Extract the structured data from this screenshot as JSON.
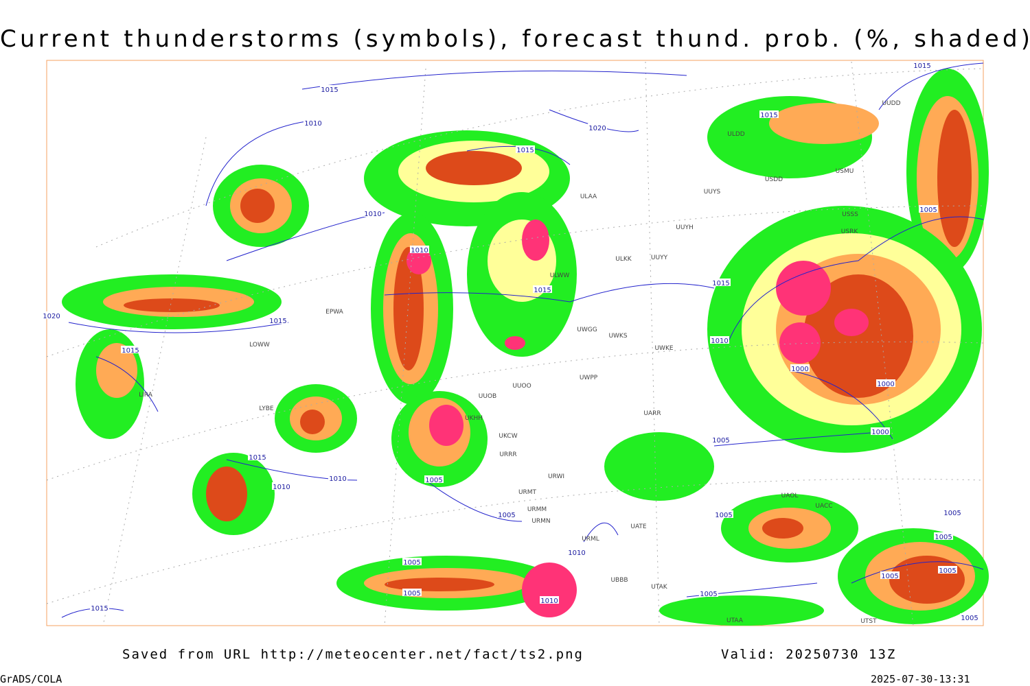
{
  "title": "Current thunderstorms (symbols), forecast thund. prob. (%, shaded)",
  "source": "Saved from URL http://meteocenter.net/fact/ts2.png",
  "valid": "Valid: 20250730 13Z",
  "software": "GrADS/COLA",
  "timestamp": "2025-07-30-13:31",
  "isobar_labels": [
    "1015",
    "1010",
    "1020",
    "1015",
    "1010",
    "1010",
    "1015",
    "1015",
    "1015",
    "1015",
    "1010",
    "1005",
    "1000",
    "1000",
    "1000",
    "1005",
    "1015",
    "1010",
    "1010",
    "1005",
    "1005",
    "1005",
    "1010",
    "1005",
    "1005",
    "1010",
    "1005",
    "1015",
    "1015",
    "1015",
    "1005",
    "1005",
    "1005",
    "1005",
    "1005",
    "1020"
  ],
  "stations": [
    "ULDD",
    "USDD",
    "USMU",
    "UUYS",
    "ULAA",
    "UUYH",
    "ULKK",
    "UUYY",
    "ULWW",
    "EPWA",
    "LOWW",
    "UWGG",
    "UWKS",
    "UWKE",
    "UWPP",
    "UUOO",
    "UUOB",
    "UKHH",
    "UKCW",
    "URRR",
    "UARR",
    "URWI",
    "URMT",
    "URMM",
    "URMN",
    "UATE",
    "URML",
    "UBBB",
    "UTAK",
    "LIRA",
    "LYBE",
    "UUDD",
    "USRK",
    "USSS",
    "UAOL",
    "UACC",
    "UTAA",
    "UTST"
  ]
}
